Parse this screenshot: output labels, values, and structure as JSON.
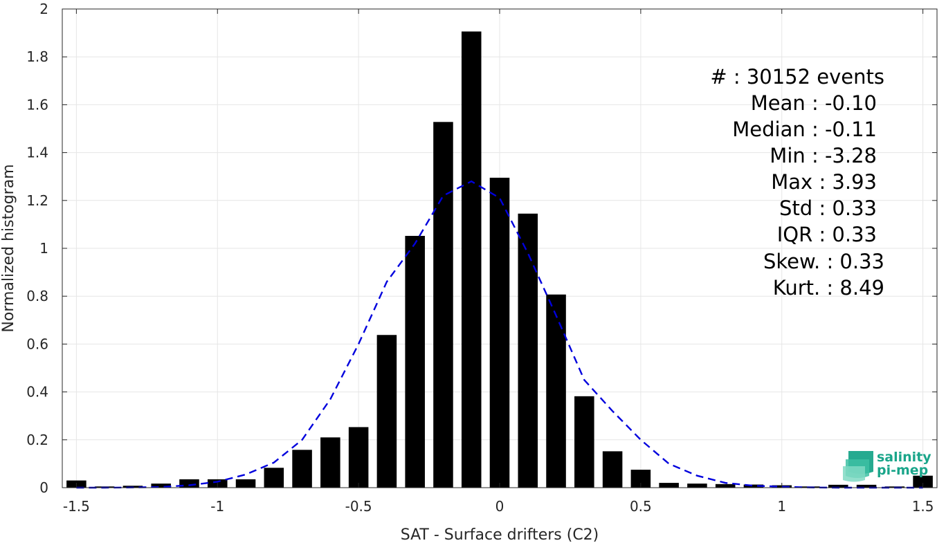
{
  "chart_data": {
    "type": "bar",
    "xlabel": "SAT - Surface drifters (C2)",
    "ylabel": "Normalized histogram",
    "xlim": [
      -1.55,
      1.55
    ],
    "ylim": [
      0,
      2
    ],
    "x_ticks": [
      -1.5,
      -1,
      -0.5,
      0,
      0.5,
      1,
      1.5
    ],
    "x_tick_labels": [
      "-1.5",
      "-1",
      "-0.5",
      "0",
      "0.5",
      "1",
      "1.5"
    ],
    "y_ticks": [
      0,
      0.2,
      0.4,
      0.6,
      0.8,
      1,
      1.2,
      1.4,
      1.6,
      1.8,
      2
    ],
    "y_tick_labels": [
      "0",
      "0.2",
      "0.4",
      "0.6",
      "0.8",
      "1",
      "1.2",
      "1.4",
      "1.6",
      "1.8",
      "2"
    ],
    "grid": true,
    "bar_color": "#000000",
    "x": [
      -1.5,
      -1.4,
      -1.3,
      -1.2,
      -1.1,
      -1.0,
      -0.9,
      -0.8,
      -0.7,
      -0.6,
      -0.5,
      -0.4,
      -0.3,
      -0.2,
      -0.1,
      0.0,
      0.1,
      0.2,
      0.3,
      0.4,
      0.5,
      0.6,
      0.7,
      0.8,
      0.9,
      1.0,
      1.1,
      1.2,
      1.3,
      1.4,
      1.5
    ],
    "values": [
      0.03,
      0.005,
      0.008,
      0.017,
      0.035,
      0.035,
      0.035,
      0.083,
      0.158,
      0.21,
      0.253,
      0.638,
      1.052,
      1.528,
      1.906,
      1.295,
      1.145,
      0.807,
      0.382,
      0.152,
      0.075,
      0.02,
      0.017,
      0.015,
      0.013,
      0.01,
      0.005,
      0.012,
      0.012,
      0.005,
      0.05
    ],
    "fit_curve": {
      "style": "dashed",
      "color": "#0000dd",
      "x": [
        -1.5,
        -1.4,
        -1.3,
        -1.2,
        -1.1,
        -1.0,
        -0.9,
        -0.8,
        -0.7,
        -0.6,
        -0.5,
        -0.4,
        -0.3,
        -0.2,
        -0.1,
        0.0,
        0.1,
        0.2,
        0.3,
        0.4,
        0.5,
        0.6,
        0.7,
        0.8,
        0.9,
        1.0,
        1.1,
        1.2,
        1.3,
        1.4,
        1.5
      ],
      "y": [
        0.0,
        0.0,
        0.001,
        0.003,
        0.01,
        0.025,
        0.055,
        0.105,
        0.2,
        0.37,
        0.6,
        0.86,
        1.02,
        1.22,
        1.28,
        1.21,
        0.98,
        0.72,
        0.45,
        0.32,
        0.2,
        0.1,
        0.05,
        0.02,
        0.008,
        0.004,
        0.001,
        0.0,
        0.0,
        0.0,
        0.0
      ]
    },
    "annotations": [
      "#  : 30152 events",
      "Mean : -0.10",
      "Median : -0.11",
      "Min : -3.28",
      "Max : 3.93",
      "Std : 0.33",
      "IQR : 0.33",
      "Skew. : 0.33",
      "Kurt. : 8.49"
    ]
  },
  "logo": {
    "line1": "salinity",
    "line2": "pi-mep",
    "color": "#1aa58a"
  }
}
